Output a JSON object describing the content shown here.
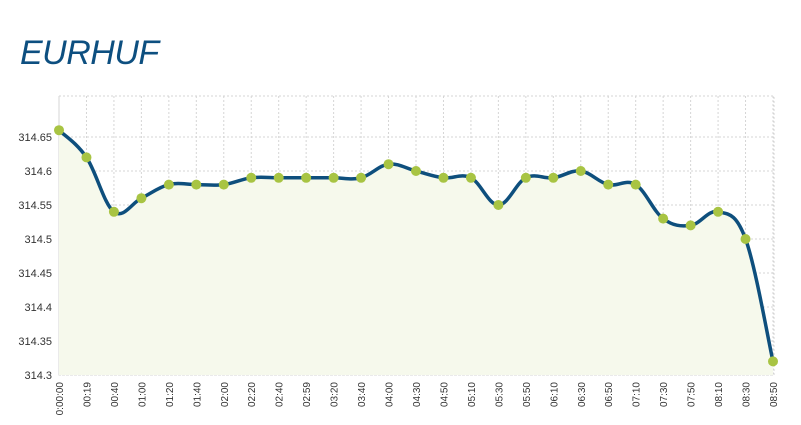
{
  "chart_data": {
    "type": "area",
    "title": "EURHUF",
    "xlabel": "",
    "ylabel": "",
    "categories": [
      "0:00:00",
      "00:19",
      "00:40",
      "01:00",
      "01:20",
      "01:40",
      "02:00",
      "02:20",
      "02:40",
      "02:59",
      "03:20",
      "03:40",
      "04:00",
      "04:30",
      "04:50",
      "05:10",
      "05:30",
      "05:50",
      "06:10",
      "06:30",
      "06:50",
      "07:10",
      "07:30",
      "07:50",
      "08:10",
      "08:30",
      "08:50"
    ],
    "values": [
      314.66,
      314.62,
      314.54,
      314.56,
      314.58,
      314.58,
      314.58,
      314.59,
      314.59,
      314.59,
      314.59,
      314.59,
      314.61,
      314.6,
      314.59,
      314.59,
      314.55,
      314.59,
      314.59,
      314.6,
      314.58,
      314.58,
      314.53,
      314.52,
      314.54,
      314.5,
      314.32
    ],
    "yticks": [
      "314.3",
      "314.35",
      "314.4",
      "314.45",
      "314.5",
      "314.55",
      "314.6",
      "314.65"
    ],
    "ylim": [
      314.3,
      314.65
    ],
    "grid": true,
    "colors": {
      "line": "#0e4f7d",
      "marker": "#a8c443",
      "fill": "#f6f9ec",
      "grid": "#d5d5d5",
      "title": "#0d4f80"
    }
  }
}
